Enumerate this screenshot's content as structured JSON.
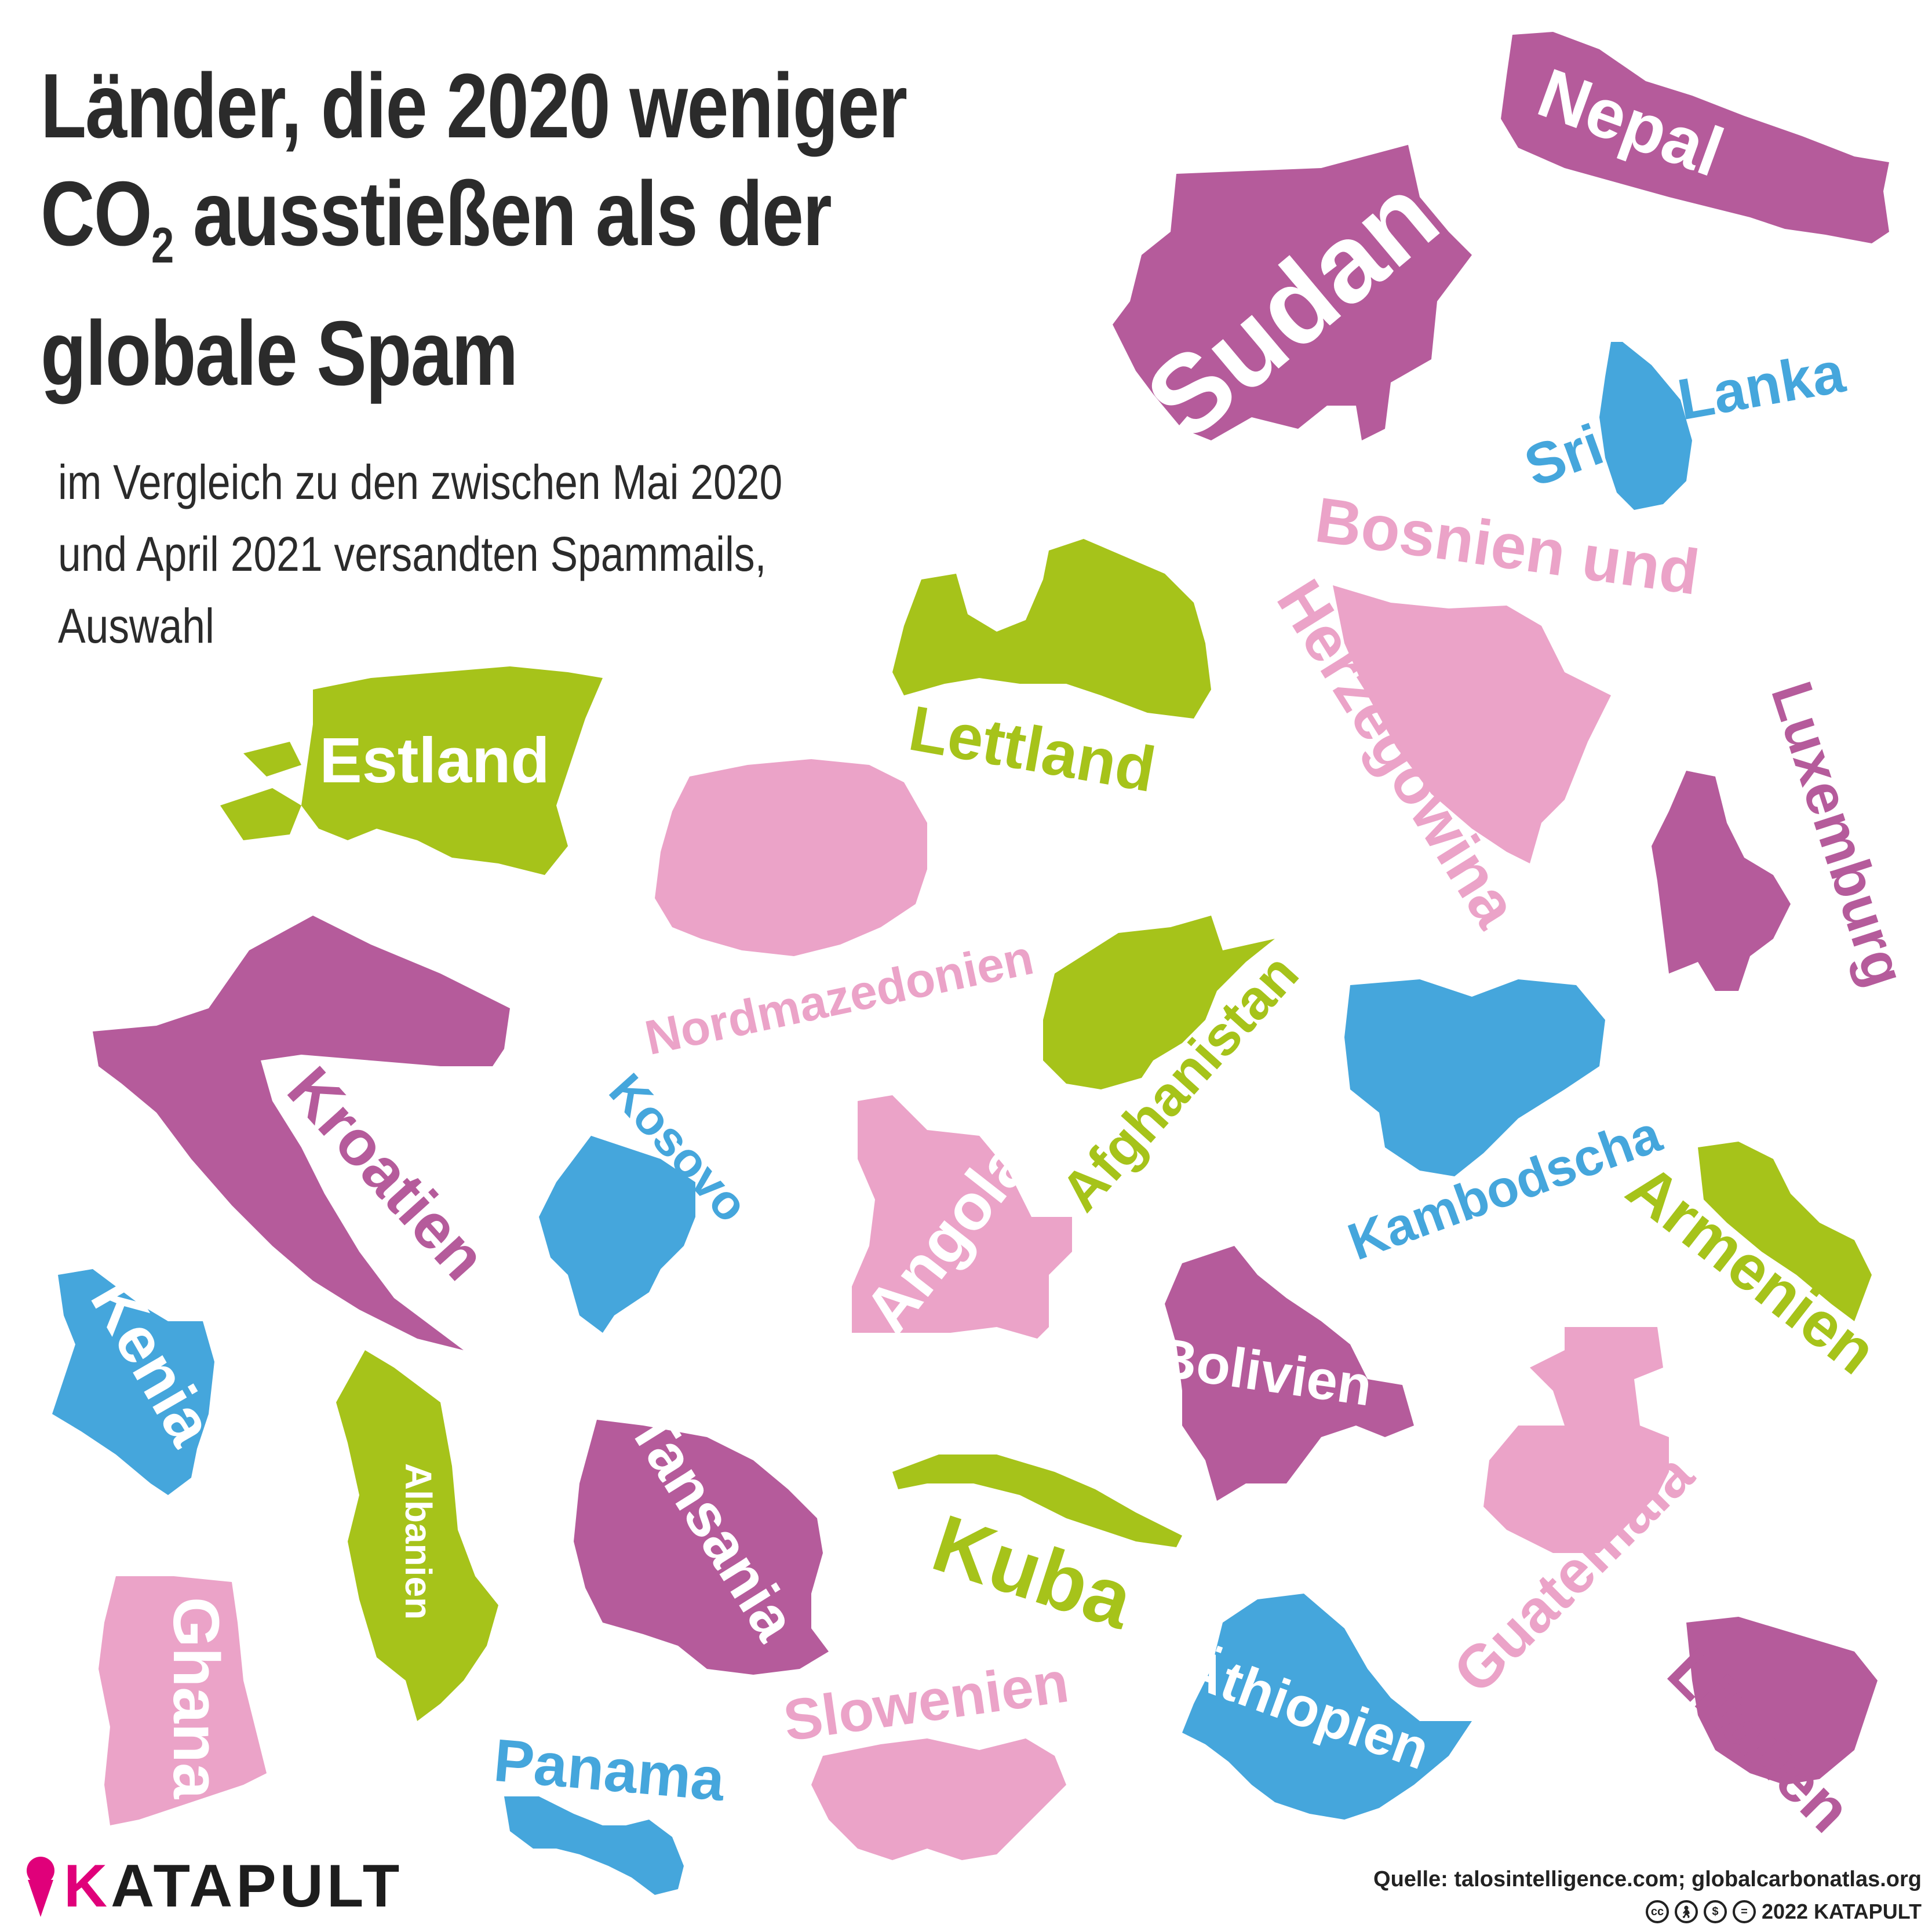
{
  "title": {
    "line1": "Länder, die 2020 weniger",
    "line2_a": "CO",
    "line2_sub": "2",
    "line2_b": " ausstießen als der",
    "line3": "globale Spam"
  },
  "subtitle": {
    "line1": "im Vergleich zu den zwischen Mai 2020",
    "line2": "und April 2021 versandten Spammails,",
    "line3": "Auswahl"
  },
  "colors": {
    "purple": "#b55b9b",
    "blue": "#45a6dc",
    "green": "#a6c31a",
    "pink": "#eba3c8",
    "brand": "#e0007a"
  },
  "countries": [
    {
      "name": "Nepal",
      "color": "purple"
    },
    {
      "name": "Sudan",
      "color": "purple"
    },
    {
      "name": "Sri",
      "color": "blue"
    },
    {
      "name": "Lanka",
      "color": "blue"
    },
    {
      "name": "Bosnien und",
      "color": "pink"
    },
    {
      "name": "Herzegowina",
      "color": "pink"
    },
    {
      "name": "Luxemburg",
      "color": "purple"
    },
    {
      "name": "Lettland",
      "color": "green"
    },
    {
      "name": "Estland",
      "color": "green"
    },
    {
      "name": "Nordmazedonien",
      "color": "pink"
    },
    {
      "name": "Afghanistan",
      "color": "green"
    },
    {
      "name": "Kambodscha",
      "color": "blue"
    },
    {
      "name": "Kroatien",
      "color": "purple"
    },
    {
      "name": "Kosovo",
      "color": "blue"
    },
    {
      "name": "Angola",
      "color": "pink"
    },
    {
      "name": "Armenien",
      "color": "green"
    },
    {
      "name": "Kenia",
      "color": "blue"
    },
    {
      "name": "Bolivien",
      "color": "purple"
    },
    {
      "name": "Albanien",
      "color": "green"
    },
    {
      "name": "Tansania",
      "color": "purple"
    },
    {
      "name": "Kuba",
      "color": "green"
    },
    {
      "name": "Guatemala",
      "color": "pink"
    },
    {
      "name": "Ghana",
      "color": "pink"
    },
    {
      "name": "Äthiopien",
      "color": "blue"
    },
    {
      "name": "Slowenien",
      "color": "pink"
    },
    {
      "name": "Litauen",
      "color": "purple"
    },
    {
      "name": "Panama",
      "color": "blue"
    }
  ],
  "logo": {
    "k": "K",
    "rest": "ATAPULT"
  },
  "footer": {
    "source": "Quelle: talosintelligence.com; globalcarbonatlas.org",
    "license_icons": [
      "cc-icon",
      "by-icon",
      "nc-icon",
      "nd-icon"
    ],
    "copyright": "2022 KATAPULT"
  }
}
